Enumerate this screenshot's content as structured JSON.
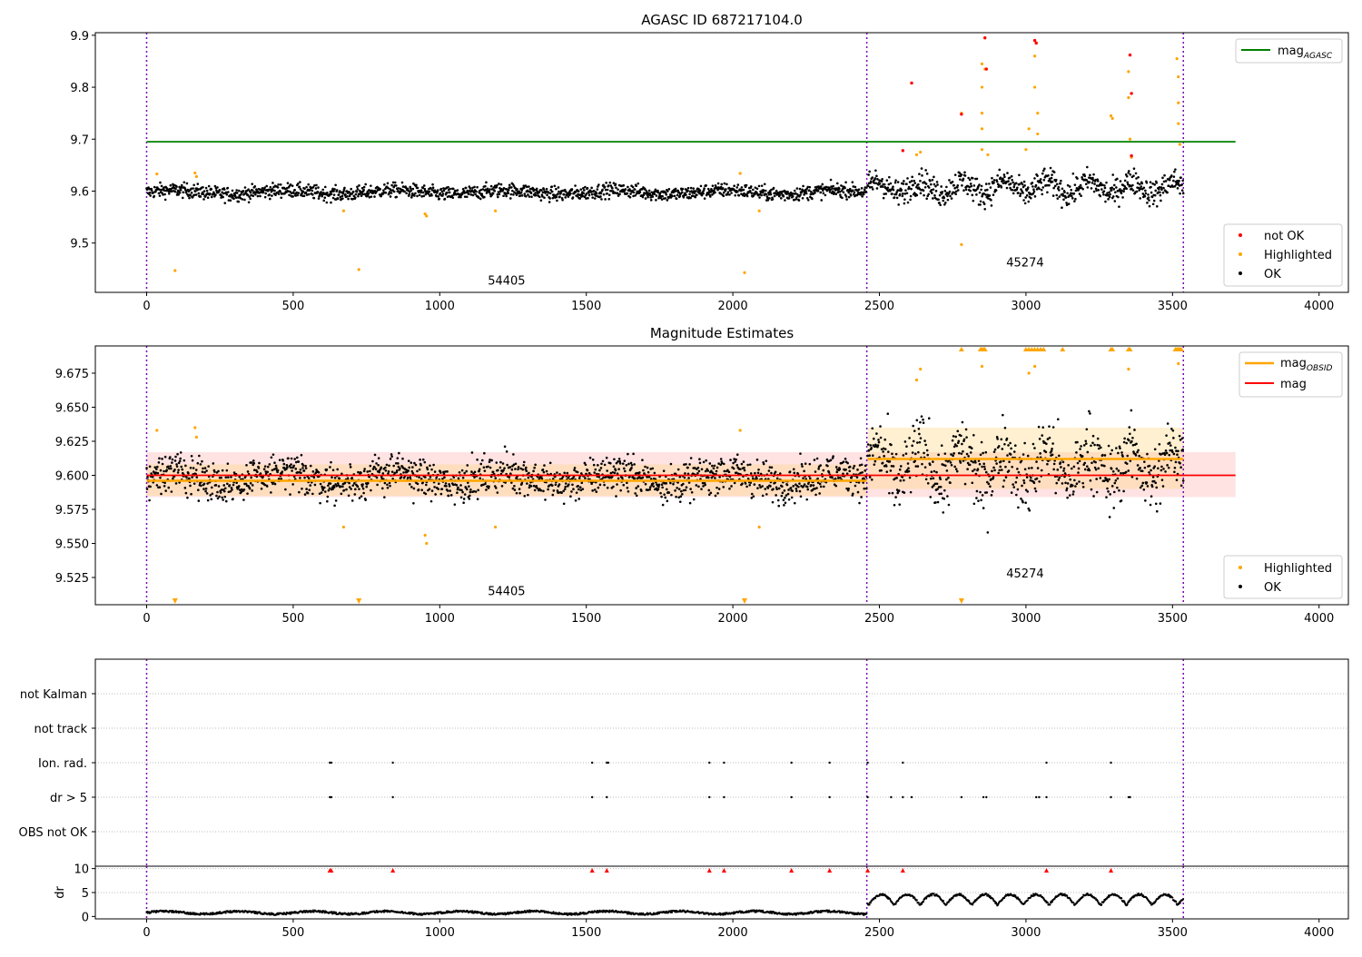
{
  "chart_data": [
    {
      "type": "scatter",
      "title": "AGASC ID 687217104.0",
      "xlim": [
        -175,
        4100
      ],
      "ylim": [
        9.405,
        9.905
      ],
      "xticks": [
        0,
        500,
        1000,
        1500,
        2000,
        2500,
        3000,
        3500,
        4000
      ],
      "yticks": [
        9.5,
        9.6,
        9.7,
        9.8,
        9.9
      ],
      "vlines": [
        0,
        2457,
        3537
      ],
      "obsid_labels": [
        {
          "text": "54405",
          "x": 1228,
          "y": 9.42
        },
        {
          "text": "45274",
          "x": 2997,
          "y": 9.455
        }
      ],
      "mag_agasc": {
        "value": 9.695,
        "x_range": [
          0,
          3715
        ],
        "color": "#008000"
      },
      "ok": {
        "color": "#000000",
        "segments": [
          {
            "x_range": [
              0,
              2457
            ],
            "mean": 9.598,
            "spread": 0.012
          },
          {
            "x_range": [
              2460,
              3537
            ],
            "mean": 9.607,
            "spread": 0.022
          }
        ]
      },
      "highlighted": {
        "color": "#ffa500",
        "points": [
          [
            35,
            9.633
          ],
          [
            97,
            9.447
          ],
          [
            165,
            9.635
          ],
          [
            170,
            9.628
          ],
          [
            672,
            9.562
          ],
          [
            724,
            9.449
          ],
          [
            950,
            9.556
          ],
          [
            955,
            9.552
          ],
          [
            1190,
            9.562
          ],
          [
            2025,
            9.634
          ],
          [
            2040,
            9.443
          ],
          [
            2090,
            9.562
          ],
          [
            2627,
            9.67
          ],
          [
            2640,
            9.675
          ],
          [
            2780,
            9.497
          ],
          [
            2780,
            9.75
          ],
          [
            2850,
            9.845
          ],
          [
            2850,
            9.8
          ],
          [
            2850,
            9.75
          ],
          [
            2850,
            9.72
          ],
          [
            2850,
            9.68
          ],
          [
            2860,
            9.835
          ],
          [
            2870,
            9.67
          ],
          [
            3000,
            9.68
          ],
          [
            3010,
            9.72
          ],
          [
            3030,
            9.8
          ],
          [
            3030,
            9.86
          ],
          [
            3035,
            9.885
          ],
          [
            3040,
            9.75
          ],
          [
            3040,
            9.71
          ],
          [
            3290,
            9.745
          ],
          [
            3295,
            9.74
          ],
          [
            3350,
            9.83
          ],
          [
            3350,
            9.78
          ],
          [
            3355,
            9.7
          ],
          [
            3360,
            9.665
          ],
          [
            3515,
            9.855
          ],
          [
            3520,
            9.82
          ],
          [
            3520,
            9.77
          ],
          [
            3520,
            9.73
          ],
          [
            3525,
            9.69
          ]
        ]
      },
      "not_ok": {
        "color": "#ff0000",
        "points": [
          [
            2610,
            9.808
          ],
          [
            2580,
            9.678
          ],
          [
            2780,
            9.748
          ],
          [
            2860,
            9.895
          ],
          [
            2865,
            9.835
          ],
          [
            3030,
            9.89
          ],
          [
            3035,
            9.885
          ],
          [
            3355,
            9.862
          ],
          [
            3360,
            9.788
          ],
          [
            3360,
            9.668
          ]
        ]
      },
      "legend_upper": {
        "position": "top-right",
        "entries": [
          {
            "label": "mag",
            "sub": "AGASC",
            "color": "#008000"
          }
        ]
      },
      "legend_lower": {
        "position": "bottom-right",
        "entries": [
          {
            "label": "not OK",
            "color": "#ff0000"
          },
          {
            "label": "Highlighted",
            "color": "#ffa500"
          },
          {
            "label": "OK",
            "color": "#000000"
          }
        ]
      }
    },
    {
      "type": "scatter",
      "title": "Magnitude Estimates",
      "xlim": [
        -175,
        4100
      ],
      "ylim": [
        9.505,
        9.695
      ],
      "xticks": [
        0,
        500,
        1000,
        1500,
        2000,
        2500,
        3000,
        3500,
        4000
      ],
      "yticks": [
        9.525,
        9.55,
        9.575,
        9.6,
        9.625,
        9.65,
        9.675
      ],
      "ytick_labels": [
        "9.525",
        "9.550",
        "9.575",
        "9.600",
        "9.625",
        "9.650",
        "9.675"
      ],
      "vlines": [
        0,
        2457,
        3537
      ],
      "obsid_labels": [
        {
          "text": "54405",
          "x": 1228,
          "y": 9.512
        },
        {
          "text": "45274",
          "x": 2997,
          "y": 9.525
        }
      ],
      "mag": {
        "value": 9.6,
        "band": [
          9.584,
          9.617
        ],
        "x_range": [
          0,
          3715
        ],
        "color": "#ff0000"
      },
      "mag_obsid": [
        {
          "x_range": [
            0,
            2457
          ],
          "value": 9.596,
          "band": [
            9.585,
            9.608
          ]
        },
        {
          "x_range": [
            2460,
            3537
          ],
          "value": 9.612,
          "band": [
            9.59,
            9.635
          ]
        }
      ],
      "ok_segments": [
        {
          "x_range": [
            0,
            2457
          ],
          "mean": 9.598,
          "spread": 0.012
        },
        {
          "x_range": [
            2460,
            3537
          ],
          "mean": 9.607,
          "spread": 0.022
        }
      ],
      "highlighted_points": [
        [
          35,
          9.633
        ],
        [
          165,
          9.635
        ],
        [
          170,
          9.628
        ],
        [
          672,
          9.562
        ],
        [
          950,
          9.556
        ],
        [
          955,
          9.55
        ],
        [
          1190,
          9.562
        ],
        [
          2025,
          9.633
        ],
        [
          2090,
          9.562
        ],
        [
          2627,
          9.67
        ],
        [
          2640,
          9.678
        ],
        [
          2850,
          9.68
        ],
        [
          3010,
          9.675
        ],
        [
          3030,
          9.68
        ],
        [
          3350,
          9.678
        ],
        [
          3520,
          9.682
        ]
      ],
      "clipped_up_x": [
        2780,
        2845,
        2850,
        2855,
        2860,
        3000,
        3010,
        3020,
        3030,
        3040,
        3050,
        3060,
        3125,
        3290,
        3295,
        3350,
        3355,
        3510,
        3515,
        3520,
        3525,
        3530
      ],
      "clipped_down_x": [
        97,
        724,
        2040,
        2780
      ],
      "legend_upper": {
        "position": "top-right",
        "entries": [
          {
            "label": "mag",
            "sub": "OBSID",
            "color": "#ffa500"
          },
          {
            "label": "mag",
            "sub": "",
            "color": "#ff0000"
          }
        ]
      },
      "legend_lower": {
        "position": "bottom-right",
        "entries": [
          {
            "label": "Highlighted",
            "color": "#ffa500"
          },
          {
            "label": "OK",
            "color": "#000000"
          }
        ]
      }
    },
    {
      "type": "scatter",
      "title": "",
      "xlim": [
        -175,
        4100
      ],
      "categories": [
        "not Kalman",
        "not track",
        "Ion. rad.",
        "dr > 5",
        "OBS not OK"
      ],
      "vlines": [
        0,
        2457,
        3537
      ],
      "flag_points": {
        "Ion. rad.": [
          625,
          630,
          840,
          1520,
          1570,
          1575,
          1920,
          1970,
          2200,
          2330,
          2460,
          2580,
          3070,
          3290
        ],
        "dr > 5": [
          625,
          630,
          840,
          1520,
          1570,
          1920,
          1970,
          2200,
          2330,
          2460,
          2540,
          2580,
          2610,
          2780,
          2855,
          2865,
          3035,
          3045,
          3070,
          3290,
          3350,
          3355
        ]
      }
    },
    {
      "type": "scatter",
      "title": "",
      "ylabel": "dr",
      "xlim": [
        -175,
        4100
      ],
      "ylim": [
        -0.5,
        10.5
      ],
      "xticks": [
        0,
        500,
        1000,
        1500,
        2000,
        2500,
        3000,
        3500,
        4000
      ],
      "yticks": [
        0,
        5,
        10
      ],
      "vlines": [
        0,
        2457,
        3537
      ],
      "dr_ok_level": [
        0.5,
        1.5
      ],
      "red_threshold": 5,
      "red_points_x": [
        625,
        630,
        840,
        1520,
        1570,
        1920,
        1970,
        2200,
        2330,
        2460,
        2580,
        3070,
        3290
      ]
    }
  ]
}
